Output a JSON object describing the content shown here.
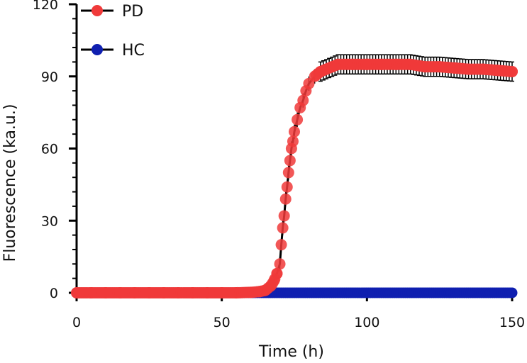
{
  "chart_data": {
    "type": "scatter",
    "title": "",
    "xlabel": "Time (h)",
    "ylabel": "Fluorescence (ka.u.)",
    "xlim": [
      0,
      150
    ],
    "ylim": [
      0,
      120
    ],
    "xticks": [
      "0",
      "50",
      "100",
      "150"
    ],
    "yticks": [
      "0",
      "30",
      "60",
      "90",
      "120"
    ],
    "grid": false,
    "legend": "top-left",
    "series": [
      {
        "name": "PD",
        "color": "#f03a3a",
        "fit": "sigmoid",
        "points": [
          [
            0,
            0
          ],
          [
            5,
            0
          ],
          [
            10,
            0
          ],
          [
            15,
            0
          ],
          [
            20,
            0
          ],
          [
            25,
            0
          ],
          [
            30,
            0
          ],
          [
            35,
            0
          ],
          [
            40,
            0
          ],
          [
            45,
            0
          ],
          [
            50,
            0
          ],
          [
            55,
            0
          ],
          [
            60,
            0.2
          ],
          [
            63,
            0.5
          ],
          [
            65,
            1
          ],
          [
            67,
            3
          ],
          [
            68,
            5
          ],
          [
            69,
            8
          ],
          [
            70,
            12
          ],
          [
            70.5,
            20
          ],
          [
            71,
            27
          ],
          [
            71.5,
            32
          ],
          [
            72,
            39
          ],
          [
            72.5,
            44
          ],
          [
            73,
            50
          ],
          [
            73.5,
            55
          ],
          [
            74,
            60
          ],
          [
            74.5,
            63
          ],
          [
            75,
            67
          ],
          [
            76,
            72
          ],
          [
            77,
            77
          ],
          [
            78,
            80
          ],
          [
            79,
            84
          ],
          [
            80,
            87
          ],
          [
            82,
            90
          ],
          [
            84,
            92
          ],
          [
            86,
            93
          ],
          [
            88,
            94
          ],
          [
            90,
            95
          ],
          [
            95,
            95
          ],
          [
            100,
            95
          ],
          [
            105,
            95
          ],
          [
            110,
            95
          ],
          [
            115,
            95
          ],
          [
            120,
            94
          ],
          [
            125,
            94
          ],
          [
            130,
            93.5
          ],
          [
            135,
            93
          ],
          [
            140,
            93
          ],
          [
            145,
            92.5
          ],
          [
            150,
            92
          ]
        ],
        "error": 4
      },
      {
        "name": "HC",
        "color": "#0f1fb0",
        "points": [
          [
            0,
            0
          ],
          [
            10,
            0
          ],
          [
            20,
            0
          ],
          [
            30,
            0
          ],
          [
            40,
            0
          ],
          [
            50,
            0
          ],
          [
            60,
            0
          ],
          [
            70,
            0
          ],
          [
            80,
            0
          ],
          [
            90,
            0
          ],
          [
            100,
            0
          ],
          [
            110,
            0
          ],
          [
            120,
            0
          ],
          [
            130,
            0
          ],
          [
            140,
            0
          ],
          [
            150,
            0
          ]
        ]
      }
    ]
  }
}
